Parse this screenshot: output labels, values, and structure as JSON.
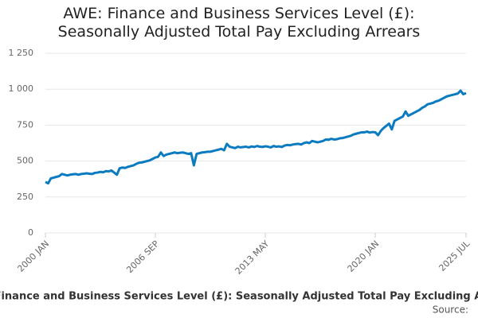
{
  "chart_data": {
    "type": "line",
    "title": "AWE: Finance and Business Services Level (£): Seasonally Adjusted Total Pay Excluding Arrears",
    "footer": "AWE: Finance and Business Services Level (£): Seasonally Adjusted Total Pay Excluding Arrears",
    "source": "Source:",
    "color": "#0b7bc1",
    "grid": true,
    "ylim": [
      0,
      1250
    ],
    "yticks": [
      0,
      250,
      500,
      750,
      {
        "value": 1000,
        "label": "1 000"
      },
      {
        "value": 1250,
        "label": "1 250"
      }
    ],
    "categories": [
      "2000 JAN",
      null,
      null,
      null,
      null,
      null,
      null,
      null,
      null,
      null,
      null,
      null,
      null,
      null,
      null,
      null,
      null,
      null,
      null,
      null,
      null,
      null,
      null,
      null,
      null,
      null,
      null,
      null,
      null,
      null,
      null,
      null,
      null,
      null,
      null,
      null,
      null,
      null,
      null,
      null,
      "2006 SEP",
      null,
      null,
      null,
      null,
      null,
      null,
      null,
      null,
      null,
      null,
      null,
      null,
      null,
      null,
      null,
      null,
      null,
      null,
      null,
      null,
      null,
      null,
      null,
      null,
      null,
      null,
      null,
      null,
      null,
      null,
      null,
      null,
      null,
      null,
      null,
      null,
      null,
      null,
      null,
      "2013 MAY",
      null,
      null,
      null,
      null,
      null,
      null,
      null,
      null,
      null,
      null,
      null,
      null,
      null,
      null,
      null,
      null,
      null,
      null,
      null,
      null,
      null,
      null,
      null,
      null,
      null,
      null,
      null,
      null,
      null,
      null,
      null,
      null,
      null,
      null,
      null,
      null,
      null,
      null,
      null,
      "2020 JAN",
      null,
      null,
      null,
      null,
      null,
      null,
      null,
      null,
      null,
      null,
      null,
      null,
      null,
      null,
      null,
      null,
      null,
      null,
      null,
      null,
      null,
      null,
      null,
      null,
      null,
      null,
      null,
      null,
      null,
      null,
      null,
      null,
      "2025 JUL"
    ],
    "values": [
      355,
      345,
      380,
      385,
      390,
      395,
      410,
      405,
      400,
      405,
      408,
      410,
      405,
      410,
      412,
      415,
      412,
      410,
      418,
      420,
      425,
      422,
      430,
      428,
      435,
      420,
      405,
      450,
      455,
      452,
      460,
      465,
      470,
      480,
      488,
      490,
      495,
      500,
      505,
      515,
      525,
      530,
      560,
      535,
      545,
      550,
      555,
      560,
      555,
      558,
      560,
      555,
      550,
      555,
      470,
      550,
      555,
      560,
      562,
      565,
      565,
      570,
      575,
      580,
      585,
      575,
      620,
      600,
      595,
      590,
      600,
      595,
      598,
      600,
      595,
      602,
      598,
      605,
      600,
      598,
      603,
      600,
      595,
      605,
      600,
      602,
      598,
      608,
      612,
      610,
      615,
      618,
      620,
      615,
      625,
      630,
      625,
      640,
      635,
      630,
      635,
      640,
      650,
      648,
      655,
      650,
      652,
      658,
      660,
      665,
      670,
      675,
      685,
      690,
      695,
      700,
      700,
      705,
      698,
      702,
      700,
      680,
      710,
      730,
      745,
      760,
      720,
      780,
      790,
      800,
      810,
      845,
      815,
      825,
      835,
      845,
      855,
      870,
      880,
      895,
      900,
      905,
      915,
      920,
      930,
      940,
      950,
      955,
      960,
      965,
      970,
      990,
      965,
      973
    ]
  }
}
